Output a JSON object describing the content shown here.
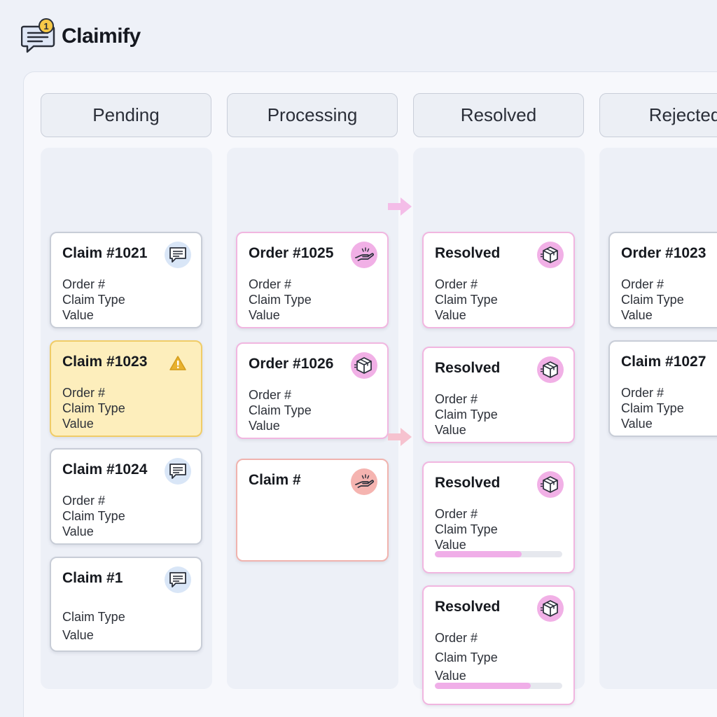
{
  "app": {
    "name": "Claimify",
    "notification_count": "1"
  },
  "columns": [
    {
      "title": "Pending",
      "cards": [
        {
          "title": "Claim #1021",
          "lines": [
            "Order #",
            "Claim Type",
            "Value"
          ],
          "icon": "chat-icon",
          "variant": "default"
        },
        {
          "title": "Claim #1023",
          "lines": [
            "Order #",
            "Claim Type",
            "Value"
          ],
          "icon": "warning-icon",
          "variant": "warn"
        },
        {
          "title": "Claim #1024",
          "lines": [
            "Order #",
            "Claim Type",
            "Value"
          ],
          "icon": "chat-icon",
          "variant": "default"
        },
        {
          "title": "Claim #1",
          "lines": [
            "Claim Type",
            "Value"
          ],
          "icon": "chat-icon",
          "variant": "default"
        }
      ]
    },
    {
      "title": "Processing",
      "cards": [
        {
          "title": "Order #1025",
          "lines": [
            "Order #",
            "Claim Type",
            "Value"
          ],
          "icon": "hand-icon",
          "variant": "pink"
        },
        {
          "title": "Order #1026",
          "lines": [
            "Order #",
            "Claim Type",
            "Value"
          ],
          "icon": "package-icon",
          "variant": "pink"
        },
        {
          "title": "Claim #",
          "lines": [],
          "icon": "hand-icon",
          "variant": "salmon"
        }
      ]
    },
    {
      "title": "Resolved",
      "cards": [
        {
          "title": "Resolved",
          "lines": [
            "Order #",
            "Claim Type",
            "Value"
          ],
          "icon": "package-icon",
          "variant": "pink"
        },
        {
          "title": "Resolved",
          "lines": [
            "Order #",
            "Claim Type",
            "Value"
          ],
          "icon": "package-icon",
          "variant": "pink"
        },
        {
          "title": "Resolved",
          "lines": [
            "Order #",
            "Claim Type",
            "Value"
          ],
          "icon": "package-icon",
          "variant": "pink",
          "progress": 0.68
        },
        {
          "title": "Resolved",
          "lines": [
            "Order #",
            "Claim Type",
            "Value"
          ],
          "icon": "package-icon",
          "variant": "pink",
          "progress": 0.75
        }
      ]
    },
    {
      "title": "Rejected",
      "cards": [
        {
          "title": "Order #1023",
          "lines": [
            "Order #",
            "Claim Type",
            "Value"
          ],
          "icon": "none",
          "variant": "default"
        },
        {
          "title": "Claim #1027",
          "lines": [
            "Order #",
            "Claim Type",
            "Value"
          ],
          "icon": "none",
          "variant": "default"
        }
      ]
    }
  ],
  "colors": {
    "accent_pink": "#f1b0e6",
    "warning": "#f0cc67",
    "progress_fill": "#f0aee8"
  }
}
